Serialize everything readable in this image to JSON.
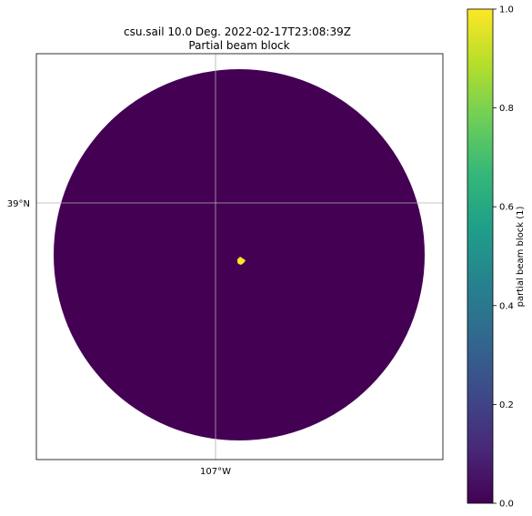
{
  "figure": {
    "title_line1": "csu.sail 10.0 Deg. 2022-02-17T23:08:39Z",
    "title_line2": "Partial beam block"
  },
  "map": {
    "gridlines": true,
    "lat_labels": [
      "39°N"
    ],
    "lon_labels": [
      "107°W"
    ],
    "background_color": "#440154",
    "feature_color": "#fde725"
  },
  "chart_data": {
    "type": "heatmap",
    "title": "csu.sail 10.0 Deg. 2022-02-17T23:08:39Z\nPartial beam block",
    "colorbar": {
      "label": "partial beam block (1)",
      "vmin": 0.0,
      "vmax": 1.0,
      "ticks": [
        0.0,
        0.2,
        0.4,
        0.6,
        0.8,
        1.0
      ],
      "tick_labels": [
        "0.0",
        "0.2",
        "0.4",
        "0.6",
        "0.8",
        "1.0"
      ],
      "colormap": "viridis",
      "colormap_stops": [
        "#440154",
        "#482878",
        "#3e4a89",
        "#31688e",
        "#26828e",
        "#1f9e89",
        "#35b779",
        "#6ece58",
        "#b5de2b",
        "#fde725"
      ]
    },
    "field": {
      "dominant_value": 0.0,
      "hotspot_value": 1.0
    }
  }
}
